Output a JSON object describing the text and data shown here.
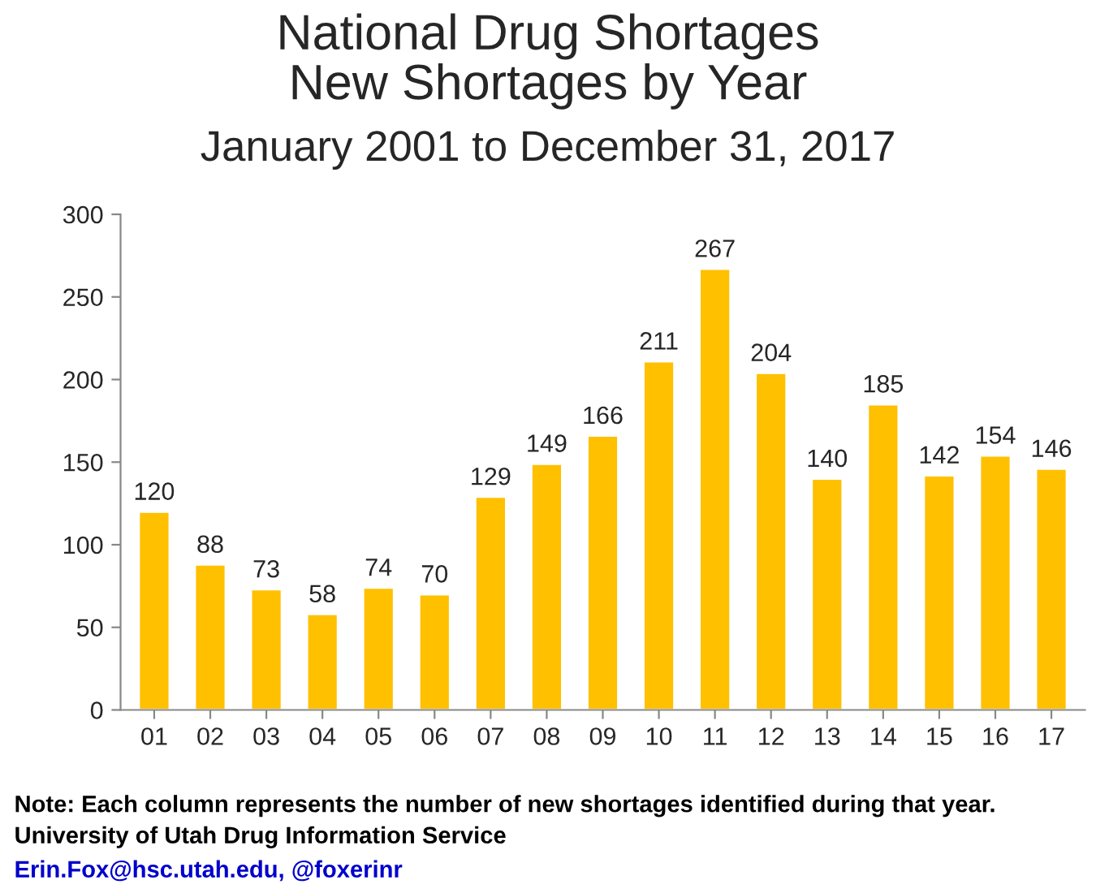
{
  "chart_data": {
    "type": "bar",
    "title": "National Drug Shortages\nNew Shortages by Year",
    "subtitle": "January 2001 to December 31, 2017",
    "categories": [
      "01",
      "02",
      "03",
      "04",
      "05",
      "06",
      "07",
      "08",
      "09",
      "10",
      "11",
      "12",
      "13",
      "14",
      "15",
      "16",
      "17"
    ],
    "values": [
      120,
      88,
      73,
      58,
      74,
      70,
      129,
      149,
      166,
      211,
      267,
      204,
      140,
      185,
      142,
      154,
      146
    ],
    "color": "#ffc000",
    "data_labels": true,
    "ylim": [
      0,
      300
    ],
    "yticks": [
      0,
      50,
      100,
      150,
      200,
      250,
      300
    ],
    "grid": false,
    "legend": false,
    "annotations": [
      "Note: Each column represents the number of new shortages identified during that year.",
      "University of Utah Drug Information Service",
      "Erin.Fox@hsc.utah.edu, @foxerinr"
    ]
  }
}
